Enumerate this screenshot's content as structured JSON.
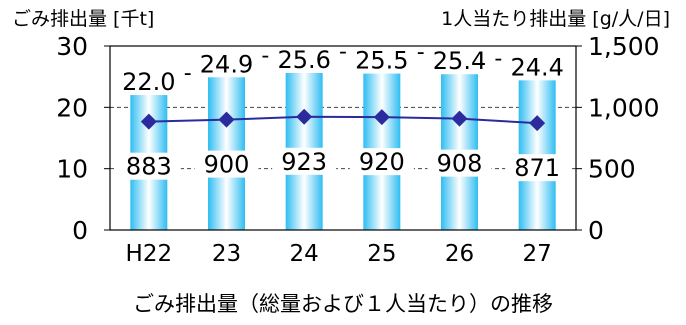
{
  "chart_data": {
    "type": "bar",
    "title": "",
    "caption": "ごみ排出量（総量および１人当たり）の推移",
    "categories": [
      "H22",
      "23",
      "24",
      "25",
      "26",
      "27"
    ],
    "series": [
      {
        "name": "ごみ排出量",
        "axis": "left",
        "values": [
          22.0,
          24.9,
          25.6,
          25.5,
          25.4,
          24.4
        ],
        "data_labels": [
          "22.0",
          "24.9",
          "25.6",
          "25.5",
          "25.4",
          "24.4"
        ],
        "color": "#33bff0"
      },
      {
        "name": "1人当たり排出量",
        "axis": "right",
        "type": "line",
        "values": [
          883,
          900,
          923,
          920,
          908,
          871
        ],
        "data_labels": [
          "883",
          "900",
          "923",
          "920",
          "908",
          "871"
        ],
        "color": "#2b2b9e"
      }
    ],
    "y_left": {
      "label": "ごみ排出量 [千t]",
      "ylim": [
        0,
        30
      ],
      "ticks": [
        0,
        10,
        20,
        30
      ],
      "tick_labels": [
        "0",
        "10",
        "20",
        "30"
      ]
    },
    "y_right": {
      "label": "1人当たり排出量 [g/人/日]",
      "ylim": [
        0,
        1500
      ],
      "ticks": [
        0,
        500,
        1000,
        1500
      ],
      "tick_labels": [
        "0",
        "500",
        "1,000",
        "1,500"
      ]
    },
    "grid": "horizontal dashed",
    "legend": "none"
  }
}
